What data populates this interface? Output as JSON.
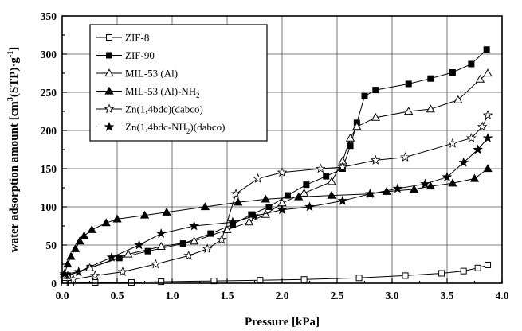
{
  "chart_data": {
    "type": "line",
    "xlabel": "Pressure [kPa]",
    "ylabel": "water adsorption amount [cm³(STP)·g⁻¹]",
    "xlim": [
      0.0,
      4.0
    ],
    "ylim": [
      0,
      350
    ],
    "xticks": [
      "0.0",
      "0.5",
      "1.0",
      "1.5",
      "2.0",
      "2.5",
      "3.0",
      "3.5",
      "4.0"
    ],
    "yticks": [
      "0",
      "50",
      "100",
      "150",
      "200",
      "250",
      "300",
      "350"
    ],
    "grid": true,
    "legend_position": "top-left",
    "series": [
      {
        "name": "ZIF-8",
        "marker": "square-open",
        "x": [
          0.02,
          0.08,
          0.3,
          0.63,
          0.9,
          1.38,
          1.8,
          2.2,
          2.7,
          3.12,
          3.45,
          3.65,
          3.78,
          3.87
        ],
        "y": [
          0,
          0,
          1,
          1,
          2,
          3,
          4,
          5,
          7,
          10,
          13,
          16,
          20,
          24
        ]
      },
      {
        "name": "ZIF-90",
        "marker": "square-filled",
        "x": [
          0.05,
          0.25,
          0.52,
          0.78,
          1.1,
          1.35,
          1.55,
          1.72,
          1.88,
          2.05,
          2.22,
          2.4,
          2.55,
          2.62,
          2.68,
          2.75,
          2.85,
          3.15,
          3.35,
          3.55,
          3.72,
          3.86
        ],
        "y": [
          10,
          20,
          33,
          42,
          52,
          65,
          77,
          90,
          100,
          115,
          129,
          140,
          150,
          180,
          210,
          245,
          253,
          261,
          268,
          276,
          287,
          306
        ]
      },
      {
        "name": "MIL-53 (Al)",
        "marker": "triangle-open",
        "x": [
          0.05,
          0.25,
          0.6,
          0.9,
          1.2,
          1.5,
          1.7,
          1.85,
          2.0,
          2.2,
          2.45,
          2.55,
          2.62,
          2.68,
          2.85,
          3.15,
          3.35,
          3.6,
          3.8,
          3.87
        ],
        "y": [
          10,
          20,
          38,
          48,
          55,
          70,
          80,
          90,
          105,
          118,
          133,
          160,
          190,
          205,
          217,
          225,
          228,
          240,
          267,
          275
        ]
      },
      {
        "name": "MIL-53 (Al)-NH₂",
        "marker": "triangle-filled",
        "x": [
          0.02,
          0.05,
          0.08,
          0.12,
          0.16,
          0.2,
          0.27,
          0.4,
          0.5,
          0.75,
          0.95,
          1.3,
          1.6,
          1.85,
          2.15,
          2.45,
          2.8,
          2.95,
          3.2,
          3.35,
          3.55,
          3.75,
          3.87
        ],
        "y": [
          12,
          25,
          35,
          45,
          55,
          62,
          70,
          79,
          84,
          89,
          93,
          100,
          106,
          110,
          113,
          115,
          117,
          120,
          123,
          127,
          131,
          137,
          150
        ]
      },
      {
        "name": "Zn(1,4bdc)(dabco)",
        "marker": "star-open",
        "x": [
          0.02,
          0.1,
          0.3,
          0.55,
          0.85,
          1.15,
          1.32,
          1.45,
          1.58,
          1.78,
          2.0,
          2.35,
          2.55,
          2.85,
          3.12,
          3.55,
          3.72,
          3.82,
          3.87
        ],
        "y": [
          10,
          5,
          10,
          15,
          25,
          36,
          45,
          57,
          117,
          137,
          145,
          150,
          152,
          161,
          165,
          183,
          190,
          205,
          220
        ]
      },
      {
        "name": "Zn(1,4bdc-NH₂)(dabco)",
        "marker": "star-filled",
        "x": [
          0.02,
          0.15,
          0.45,
          0.7,
          0.9,
          1.2,
          1.55,
          1.75,
          2.0,
          2.25,
          2.55,
          2.8,
          3.05,
          3.3,
          3.5,
          3.65,
          3.78,
          3.87
        ],
        "y": [
          12,
          15,
          34,
          50,
          65,
          75,
          80,
          88,
          96,
          100,
          108,
          117,
          124,
          130,
          139,
          158,
          175,
          190
        ]
      }
    ],
    "legend": [
      {
        "label": "ZIF-8",
        "sub": ""
      },
      {
        "label": "ZIF-90",
        "sub": ""
      },
      {
        "label": "MIL-53 (Al)",
        "sub": ""
      },
      {
        "label": "MIL-53 (Al)-NH",
        "sub": "2"
      },
      {
        "label": "Zn(1,4bdc)(dabco)",
        "sub": ""
      },
      {
        "label": "Zn(1,4bdc-NH",
        "sub": "2",
        "tail": ")(dabco)"
      }
    ],
    "ylabel_parts": {
      "main": "water adsorption amount [cm",
      "sup1": "3",
      "mid": "(STP)·g",
      "sup2": "-1",
      "end": "]"
    }
  }
}
